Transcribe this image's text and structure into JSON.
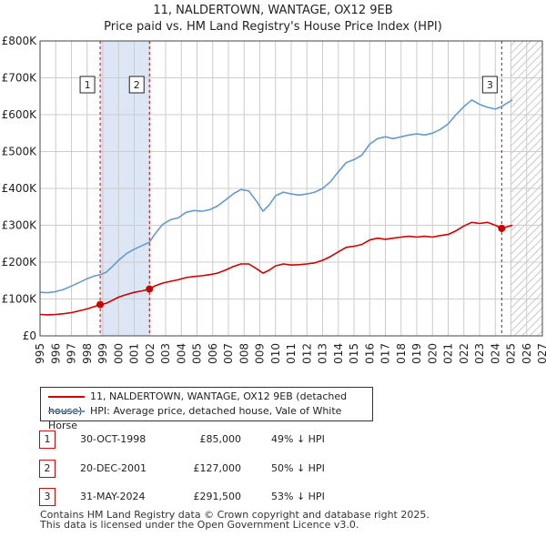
{
  "title_line1": "11, NALDERTOWN, WANTAGE, OX12 9EB",
  "title_line2": "Price paid vs. HM Land Registry's House Price Index (HPI)",
  "chart_data": {
    "type": "line",
    "title": "11, NALDERTOWN, WANTAGE, OX12 9EB — Price paid vs. HM Land Registry's House Price Index (HPI)",
    "xlabel": "",
    "ylabel": "",
    "xlim": [
      1995,
      2027
    ],
    "ylim": [
      0,
      800000
    ],
    "x_ticks": [
      1995,
      1996,
      1997,
      1998,
      1999,
      2000,
      2001,
      2002,
      2003,
      2004,
      2005,
      2006,
      2007,
      2008,
      2009,
      2010,
      2011,
      2012,
      2013,
      2014,
      2015,
      2016,
      2017,
      2018,
      2019,
      2020,
      2021,
      2022,
      2023,
      2024,
      2025,
      2026,
      2027
    ],
    "y_ticks": [
      {
        "value": 0,
        "label": "£0"
      },
      {
        "value": 100000,
        "label": "£100K"
      },
      {
        "value": 200000,
        "label": "£200K"
      },
      {
        "value": 300000,
        "label": "£300K"
      },
      {
        "value": 400000,
        "label": "£400K"
      },
      {
        "value": 500000,
        "label": "£500K"
      },
      {
        "value": 600000,
        "label": "£600K"
      },
      {
        "value": 700000,
        "label": "£700K"
      },
      {
        "value": 800000,
        "label": "£800K"
      }
    ],
    "grid": true,
    "shaded_period": [
      1998.83,
      2001.97
    ],
    "forecast_from": 2025.0,
    "series": [
      {
        "name": "11, NALDERTOWN, WANTAGE, OX12 9EB (detached house)",
        "color": "#cc0000",
        "points": [
          [
            1995.0,
            58000
          ],
          [
            1995.5,
            57000
          ],
          [
            1996.0,
            58000
          ],
          [
            1996.5,
            60000
          ],
          [
            1997.0,
            63000
          ],
          [
            1997.5,
            68000
          ],
          [
            1998.0,
            73000
          ],
          [
            1998.5,
            80000
          ],
          [
            1998.83,
            85000
          ],
          [
            1999.2,
            88000
          ],
          [
            1999.6,
            96000
          ],
          [
            2000.0,
            105000
          ],
          [
            2000.5,
            112000
          ],
          [
            2001.0,
            118000
          ],
          [
            2001.5,
            122000
          ],
          [
            2001.97,
            127000
          ],
          [
            2002.3,
            135000
          ],
          [
            2002.8,
            143000
          ],
          [
            2003.3,
            148000
          ],
          [
            2003.8,
            152000
          ],
          [
            2004.3,
            158000
          ],
          [
            2004.8,
            161000
          ],
          [
            2005.3,
            163000
          ],
          [
            2005.8,
            166000
          ],
          [
            2006.3,
            170000
          ],
          [
            2006.8,
            178000
          ],
          [
            2007.3,
            188000
          ],
          [
            2007.8,
            195000
          ],
          [
            2008.3,
            195000
          ],
          [
            2008.8,
            182000
          ],
          [
            2009.2,
            170000
          ],
          [
            2009.6,
            178000
          ],
          [
            2010.0,
            190000
          ],
          [
            2010.5,
            195000
          ],
          [
            2011.0,
            192000
          ],
          [
            2011.5,
            193000
          ],
          [
            2012.0,
            195000
          ],
          [
            2012.5,
            198000
          ],
          [
            2013.0,
            205000
          ],
          [
            2013.5,
            215000
          ],
          [
            2014.0,
            228000
          ],
          [
            2014.5,
            240000
          ],
          [
            2015.0,
            243000
          ],
          [
            2015.5,
            248000
          ],
          [
            2016.0,
            260000
          ],
          [
            2016.5,
            265000
          ],
          [
            2017.0,
            262000
          ],
          [
            2017.5,
            265000
          ],
          [
            2018.0,
            268000
          ],
          [
            2018.5,
            270000
          ],
          [
            2019.0,
            268000
          ],
          [
            2019.5,
            270000
          ],
          [
            2020.0,
            268000
          ],
          [
            2020.5,
            272000
          ],
          [
            2021.0,
            275000
          ],
          [
            2021.5,
            285000
          ],
          [
            2022.0,
            298000
          ],
          [
            2022.5,
            308000
          ],
          [
            2023.0,
            305000
          ],
          [
            2023.5,
            308000
          ],
          [
            2024.0,
            300000
          ],
          [
            2024.41,
            291500
          ],
          [
            2024.7,
            295000
          ],
          [
            2025.1,
            300000
          ]
        ]
      },
      {
        "name": "HPI: Average price, detached house, Vale of White Horse",
        "color": "#6699cc",
        "points": [
          [
            1995.0,
            118000
          ],
          [
            1995.5,
            117000
          ],
          [
            1996.0,
            120000
          ],
          [
            1996.5,
            126000
          ],
          [
            1997.0,
            135000
          ],
          [
            1997.5,
            145000
          ],
          [
            1998.0,
            155000
          ],
          [
            1998.5,
            163000
          ],
          [
            1998.83,
            166000
          ],
          [
            1999.2,
            172000
          ],
          [
            1999.6,
            188000
          ],
          [
            2000.0,
            205000
          ],
          [
            2000.5,
            223000
          ],
          [
            2001.0,
            235000
          ],
          [
            2001.5,
            245000
          ],
          [
            2001.97,
            254000
          ],
          [
            2002.3,
            275000
          ],
          [
            2002.8,
            302000
          ],
          [
            2003.3,
            315000
          ],
          [
            2003.8,
            320000
          ],
          [
            2004.3,
            335000
          ],
          [
            2004.8,
            340000
          ],
          [
            2005.3,
            338000
          ],
          [
            2005.8,
            342000
          ],
          [
            2006.3,
            352000
          ],
          [
            2006.8,
            368000
          ],
          [
            2007.3,
            385000
          ],
          [
            2007.8,
            397000
          ],
          [
            2008.3,
            393000
          ],
          [
            2008.8,
            365000
          ],
          [
            2009.2,
            338000
          ],
          [
            2009.6,
            355000
          ],
          [
            2010.0,
            380000
          ],
          [
            2010.5,
            390000
          ],
          [
            2011.0,
            385000
          ],
          [
            2011.5,
            382000
          ],
          [
            2012.0,
            385000
          ],
          [
            2012.5,
            390000
          ],
          [
            2013.0,
            400000
          ],
          [
            2013.5,
            418000
          ],
          [
            2014.0,
            445000
          ],
          [
            2014.5,
            470000
          ],
          [
            2015.0,
            478000
          ],
          [
            2015.5,
            490000
          ],
          [
            2016.0,
            520000
          ],
          [
            2016.5,
            535000
          ],
          [
            2017.0,
            540000
          ],
          [
            2017.5,
            535000
          ],
          [
            2018.0,
            540000
          ],
          [
            2018.5,
            545000
          ],
          [
            2019.0,
            548000
          ],
          [
            2019.5,
            545000
          ],
          [
            2020.0,
            550000
          ],
          [
            2020.5,
            560000
          ],
          [
            2021.0,
            575000
          ],
          [
            2021.5,
            600000
          ],
          [
            2022.0,
            622000
          ],
          [
            2022.5,
            640000
          ],
          [
            2023.0,
            628000
          ],
          [
            2023.5,
            620000
          ],
          [
            2024.0,
            615000
          ],
          [
            2024.41,
            622000
          ],
          [
            2024.7,
            630000
          ],
          [
            2025.1,
            640000
          ]
        ]
      }
    ],
    "sales": [
      {
        "id": "1",
        "x": 1998.83,
        "price": 85000
      },
      {
        "id": "2",
        "x": 2001.97,
        "price": 127000
      },
      {
        "id": "3",
        "x": 2024.41,
        "price": 291500
      }
    ]
  },
  "legend": {
    "property_label": "11, NALDERTOWN, WANTAGE, OX12 9EB (detached house)",
    "hpi_label": "HPI: Average price, detached house, Vale of White Horse"
  },
  "sales_table": [
    {
      "id": "1",
      "date": "30-OCT-1998",
      "price": "£85,000",
      "hpi": "49% ↓ HPI"
    },
    {
      "id": "2",
      "date": "20-DEC-2001",
      "price": "£127,000",
      "hpi": "50% ↓ HPI"
    },
    {
      "id": "3",
      "date": "31-MAY-2024",
      "price": "£291,500",
      "hpi": "53% ↓ HPI"
    }
  ],
  "footer": {
    "line1": "Contains HM Land Registry data © Crown copyright and database right 2025.",
    "line2": "This data is licensed under the Open Government Licence v3.0."
  },
  "colors": {
    "property_line": "#cc0000",
    "hpi_line": "#6699cc",
    "shade": "#dde6f5",
    "grid": "#cccccc",
    "marker_line": "#cc0000"
  }
}
